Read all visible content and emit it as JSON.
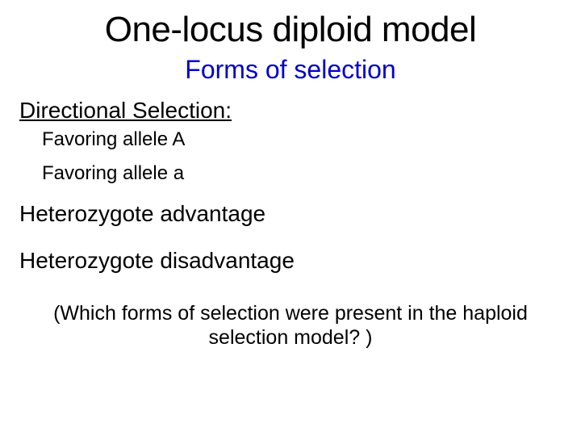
{
  "title": "One-locus diploid model",
  "subtitle": "Forms of selection",
  "sections": {
    "directional": {
      "heading": "Directional Selection:",
      "items": [
        "Favoring allele A",
        "Favoring allele a"
      ]
    },
    "het_advantage": "Heterozygote advantage",
    "het_disadvantage": "Heterozygote disadvantage"
  },
  "question": "(Which forms of selection were present in the haploid selection model? )",
  "colors": {
    "title_color": "#000000",
    "subtitle_color": "#0000cc",
    "body_color": "#000000",
    "background": "#ffffff"
  },
  "typography": {
    "title_fontsize": 44,
    "subtitle_fontsize": 32,
    "heading_fontsize": 28,
    "subitem_fontsize": 24,
    "question_fontsize": 25,
    "font_family": "Arial"
  }
}
